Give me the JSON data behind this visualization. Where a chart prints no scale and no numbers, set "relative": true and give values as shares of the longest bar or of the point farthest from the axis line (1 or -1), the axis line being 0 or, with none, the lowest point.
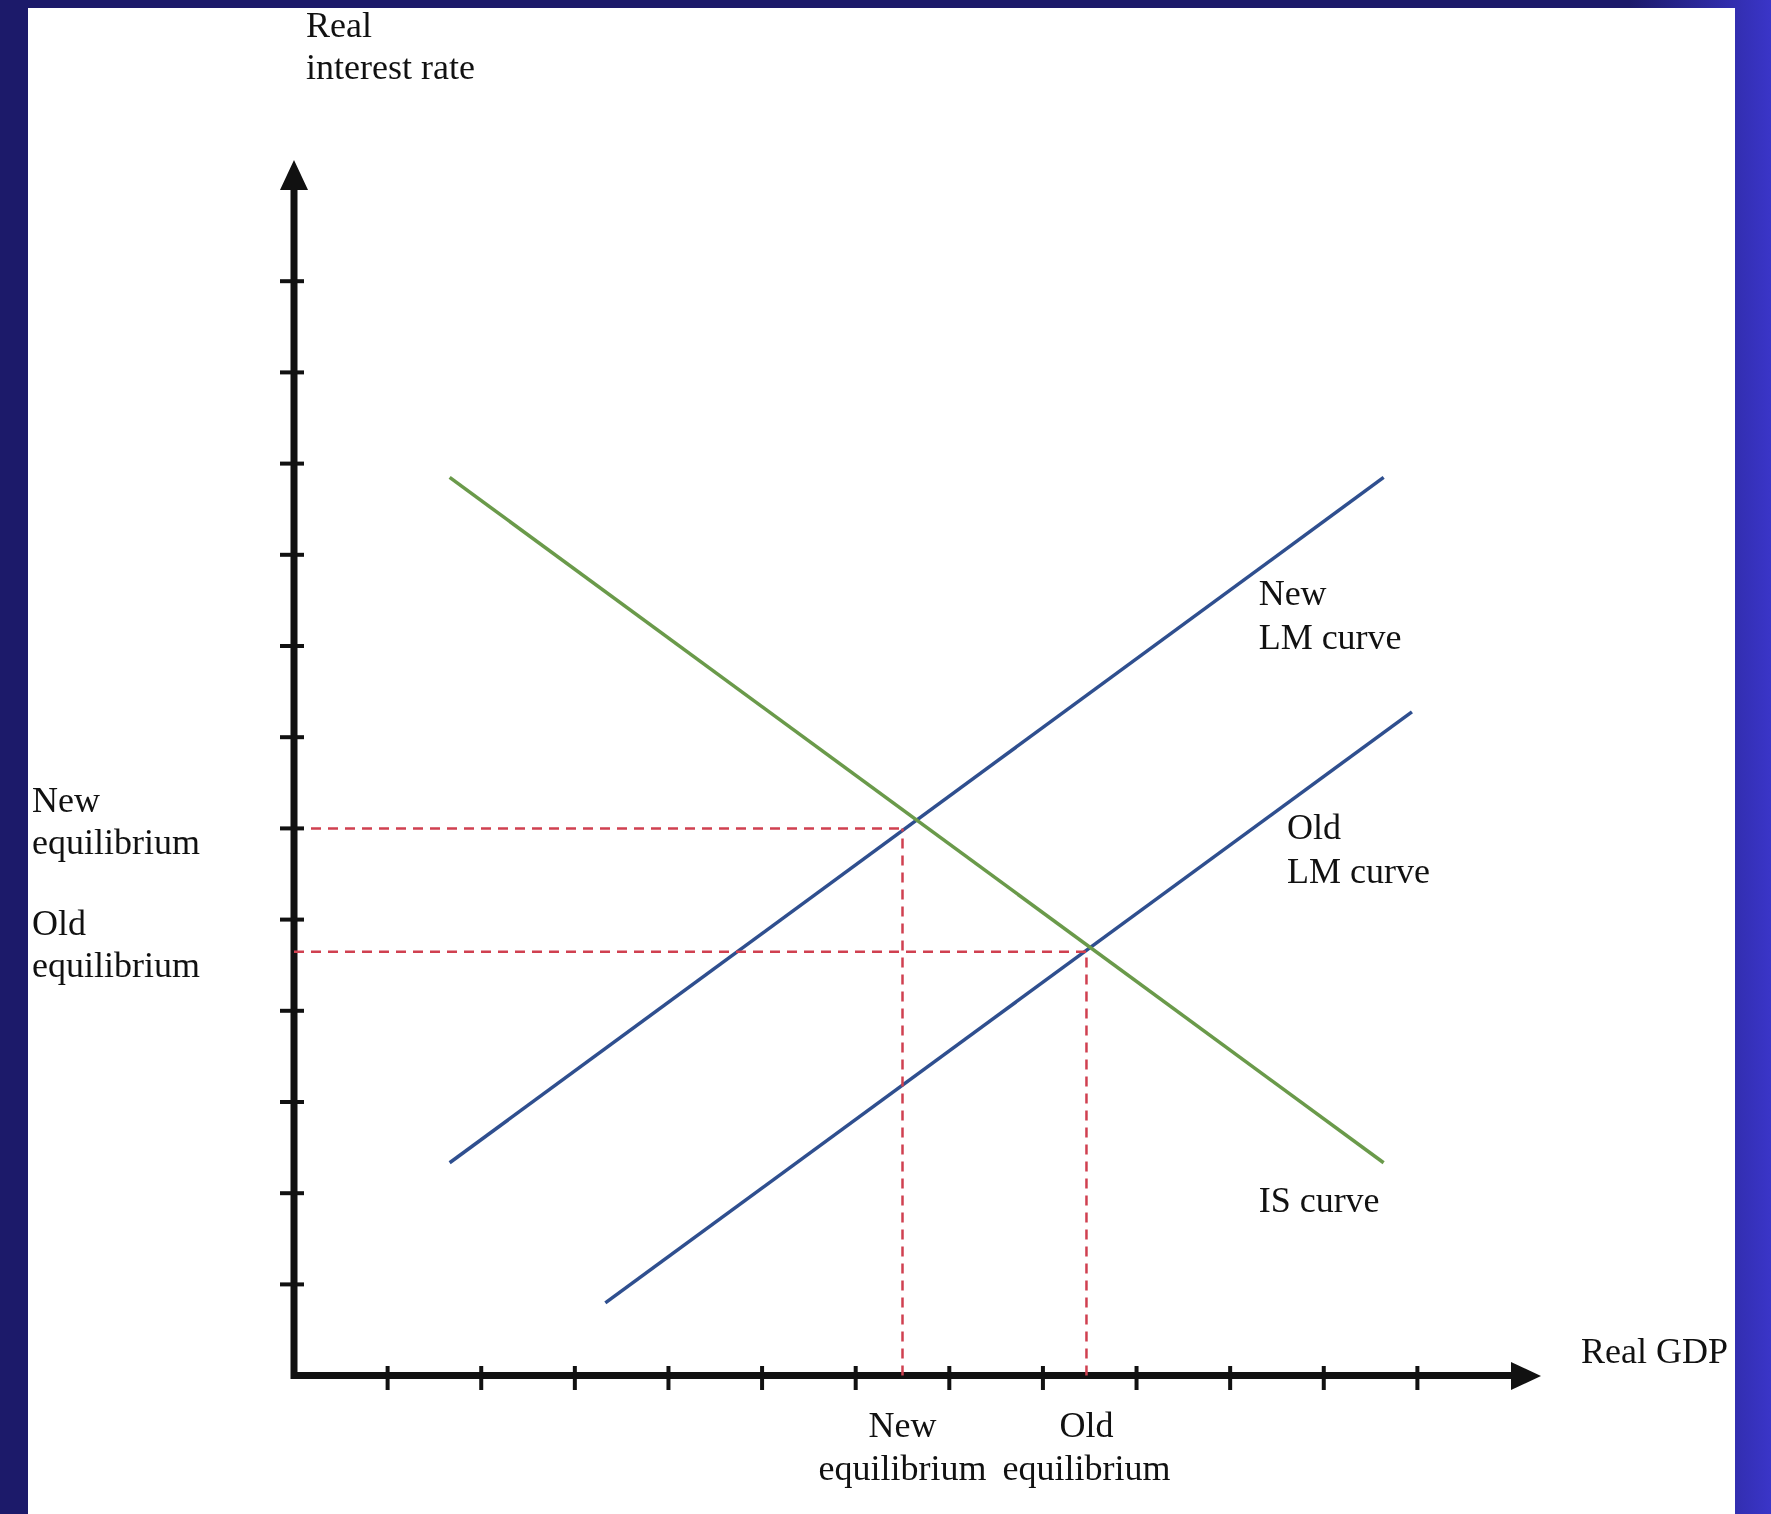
{
  "chart_data": {
    "type": "line",
    "xlabel": "Real GDP",
    "annotations": [
      "Real interest rate"
    ],
    "relative": true,
    "legend": false,
    "marker": "none",
    "categories": [
      null,
      null,
      null,
      null,
      null,
      null,
      null,
      null,
      null,
      null,
      null,
      null,
      null,
      null,
      null,
      null,
      null,
      null,
      null,
      null,
      null,
      null,
      null,
      null,
      null,
      null,
      null,
      null,
      null,
      null,
      null,
      null,
      null,
      null,
      null,
      null,
      null,
      null,
      null,
      null,
      null,
      null,
      null,
      "New equilibrium",
      null,
      null,
      null,
      null,
      null,
      null,
      null,
      null,
      null,
      null,
      null,
      null,
      "Old equilibrium",
      null,
      null,
      null,
      null,
      null,
      null,
      null,
      null,
      null,
      null,
      null,
      null,
      null,
      null,
      null,
      null,
      null,
      null,
      null,
      null,
      null,
      null,
      null,
      null,
      null,
      null,
      null,
      null,
      null,
      null
    ],
    "ref_lines": [
      {
        "axis": "x",
        "value": "New equilibrium",
        "color": "#d04050",
        "line_style": "dashed"
      },
      {
        "axis": "y",
        "value": 0.609,
        "label": "New equilibrium",
        "color": "#d04050",
        "line_style": "dashed"
      },
      {
        "axis": "x",
        "value": "Old equilibrium",
        "color": "#d04050",
        "line_style": "dashed"
      },
      {
        "axis": "y",
        "value": 0.472,
        "label": "Old equilibrium",
        "color": "#d04050",
        "line_style": "dashed"
      }
    ],
    "series": [
      {
        "name": "IS curve",
        "color": "#6a9a4a",
        "values": [
          null,
          null,
          null,
          null,
          null,
          null,
          null,
          null,
          null,
          null,
          null,
          1,
          null,
          null,
          null,
          null,
          null,
          null,
          null,
          null,
          null,
          null,
          null,
          null,
          null,
          null,
          null,
          null,
          null,
          null,
          null,
          null,
          null,
          null,
          null,
          null,
          null,
          null,
          null,
          null,
          null,
          null,
          null,
          null,
          null,
          null,
          null,
          null,
          null,
          null,
          null,
          null,
          null,
          null,
          null,
          null,
          null,
          null,
          null,
          null,
          null,
          null,
          null,
          null,
          null,
          null,
          null,
          null,
          null,
          null,
          null,
          null,
          null,
          null,
          null,
          null,
          null,
          0.237,
          null,
          null,
          null,
          null,
          null,
          null,
          null,
          null,
          null
        ]
      },
      {
        "name": "New LM curve",
        "color": "#2f4f8f",
        "values": [
          null,
          null,
          null,
          null,
          null,
          null,
          null,
          null,
          null,
          null,
          null,
          0.237,
          null,
          null,
          null,
          null,
          null,
          null,
          null,
          null,
          null,
          null,
          null,
          null,
          null,
          null,
          null,
          null,
          null,
          null,
          null,
          null,
          null,
          null,
          null,
          null,
          null,
          null,
          null,
          null,
          null,
          null,
          null,
          null,
          null,
          null,
          null,
          null,
          null,
          null,
          null,
          null,
          null,
          null,
          null,
          null,
          null,
          null,
          null,
          null,
          null,
          null,
          null,
          null,
          null,
          null,
          null,
          null,
          null,
          null,
          null,
          null,
          null,
          null,
          null,
          null,
          null,
          1,
          null,
          null,
          null,
          null,
          null,
          null,
          null,
          null,
          null
        ]
      },
      {
        "name": "Old LM curve",
        "color": "#2f4f8f",
        "values": [
          null,
          null,
          null,
          null,
          null,
          null,
          null,
          null,
          null,
          null,
          null,
          null,
          null,
          null,
          null,
          null,
          null,
          null,
          null,
          null,
          null,
          null,
          0.081,
          null,
          null,
          null,
          null,
          null,
          null,
          null,
          null,
          null,
          null,
          null,
          null,
          null,
          null,
          null,
          null,
          null,
          null,
          null,
          null,
          null,
          null,
          null,
          null,
          null,
          null,
          null,
          null,
          null,
          null,
          null,
          null,
          null,
          null,
          null,
          null,
          null,
          null,
          null,
          null,
          null,
          null,
          null,
          null,
          null,
          null,
          null,
          null,
          null,
          null,
          null,
          null,
          null,
          null,
          null,
          null,
          0.739,
          null,
          null,
          null,
          null,
          null,
          null,
          null
        ]
      }
    ]
  }
}
